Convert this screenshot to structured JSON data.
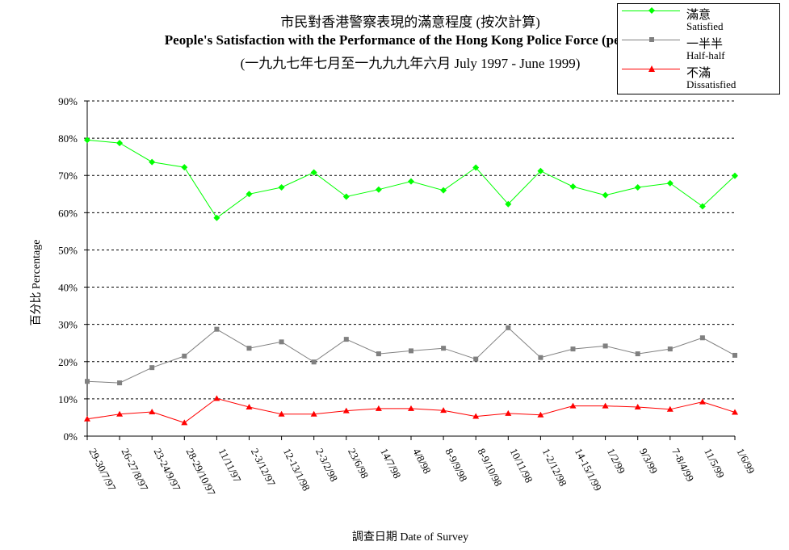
{
  "titles": {
    "line1": "市民對香港警察表現的滿意程度 (按次計算)",
    "line2": "People's Satisfaction with the Performance of the Hong Kong Police Force (per poll)",
    "line3": "(一九九七年七月至一九九九年六月 July 1997 - June 1999)"
  },
  "legend": [
    {
      "zh": "滿意",
      "en": "Satisfied",
      "color": "#00ff00",
      "marker": "diamond"
    },
    {
      "zh": "一半半",
      "en": "Half-half",
      "color": "#808080",
      "marker": "square"
    },
    {
      "zh": "不滿",
      "en": "Dissatisfied",
      "color": "#ff0000",
      "marker": "triangle"
    }
  ],
  "chart_data": {
    "type": "line",
    "title": "People's Satisfaction with the Performance of the Hong Kong Police Force (per poll)",
    "xlabel": "調查日期 Date of Survey",
    "ylabel": "百分比 Percentage",
    "ylim": [
      0,
      90
    ],
    "yticks": [
      "0%",
      "10%",
      "20%",
      "30%",
      "40%",
      "50%",
      "60%",
      "70%",
      "80%",
      "90%"
    ],
    "grid": "horizontal dashed",
    "legend_position": "top-right",
    "categories": [
      "29-30/7/97",
      "26-27/8/97",
      "23-24/9/97",
      "28-29/10/97",
      "11/11/97",
      "2-3/12/97",
      "12-13/1/98",
      "2-3/2/98",
      "23/6/98",
      "14/7/98",
      "4/8/98",
      "8-9/9/98",
      "8-9/10/98",
      "10/11/98",
      "1-2/12/98",
      "14-15/1/99",
      "1/2/99",
      "9/3/99",
      "7-8/4/99",
      "11/5/99",
      "1/6/99"
    ],
    "series": [
      {
        "name": "滿意 Satisfied",
        "color": "#00ff00",
        "marker": "diamond",
        "values": [
          79.5,
          78.7,
          73.6,
          72.2,
          58.6,
          65.0,
          66.8,
          70.8,
          64.3,
          66.2,
          68.4,
          66.0,
          72.1,
          62.3,
          71.2,
          67.0,
          64.7,
          66.8,
          67.9,
          61.7,
          69.9
        ]
      },
      {
        "name": "一半半 Half-half",
        "color": "#808080",
        "marker": "square",
        "values": [
          14.7,
          14.3,
          18.4,
          21.5,
          28.7,
          23.6,
          25.3,
          19.9,
          26.0,
          22.1,
          22.9,
          23.6,
          20.7,
          29.1,
          21.1,
          23.4,
          24.2,
          22.1,
          23.4,
          26.4,
          21.7
        ]
      },
      {
        "name": "不滿 Dissatisfied",
        "color": "#ff0000",
        "marker": "triangle",
        "values": [
          4.6,
          5.9,
          6.5,
          3.6,
          10.1,
          7.8,
          5.9,
          5.9,
          6.8,
          7.4,
          7.4,
          6.9,
          5.3,
          6.1,
          5.7,
          8.1,
          8.1,
          7.8,
          7.2,
          9.2,
          6.4
        ]
      }
    ]
  }
}
